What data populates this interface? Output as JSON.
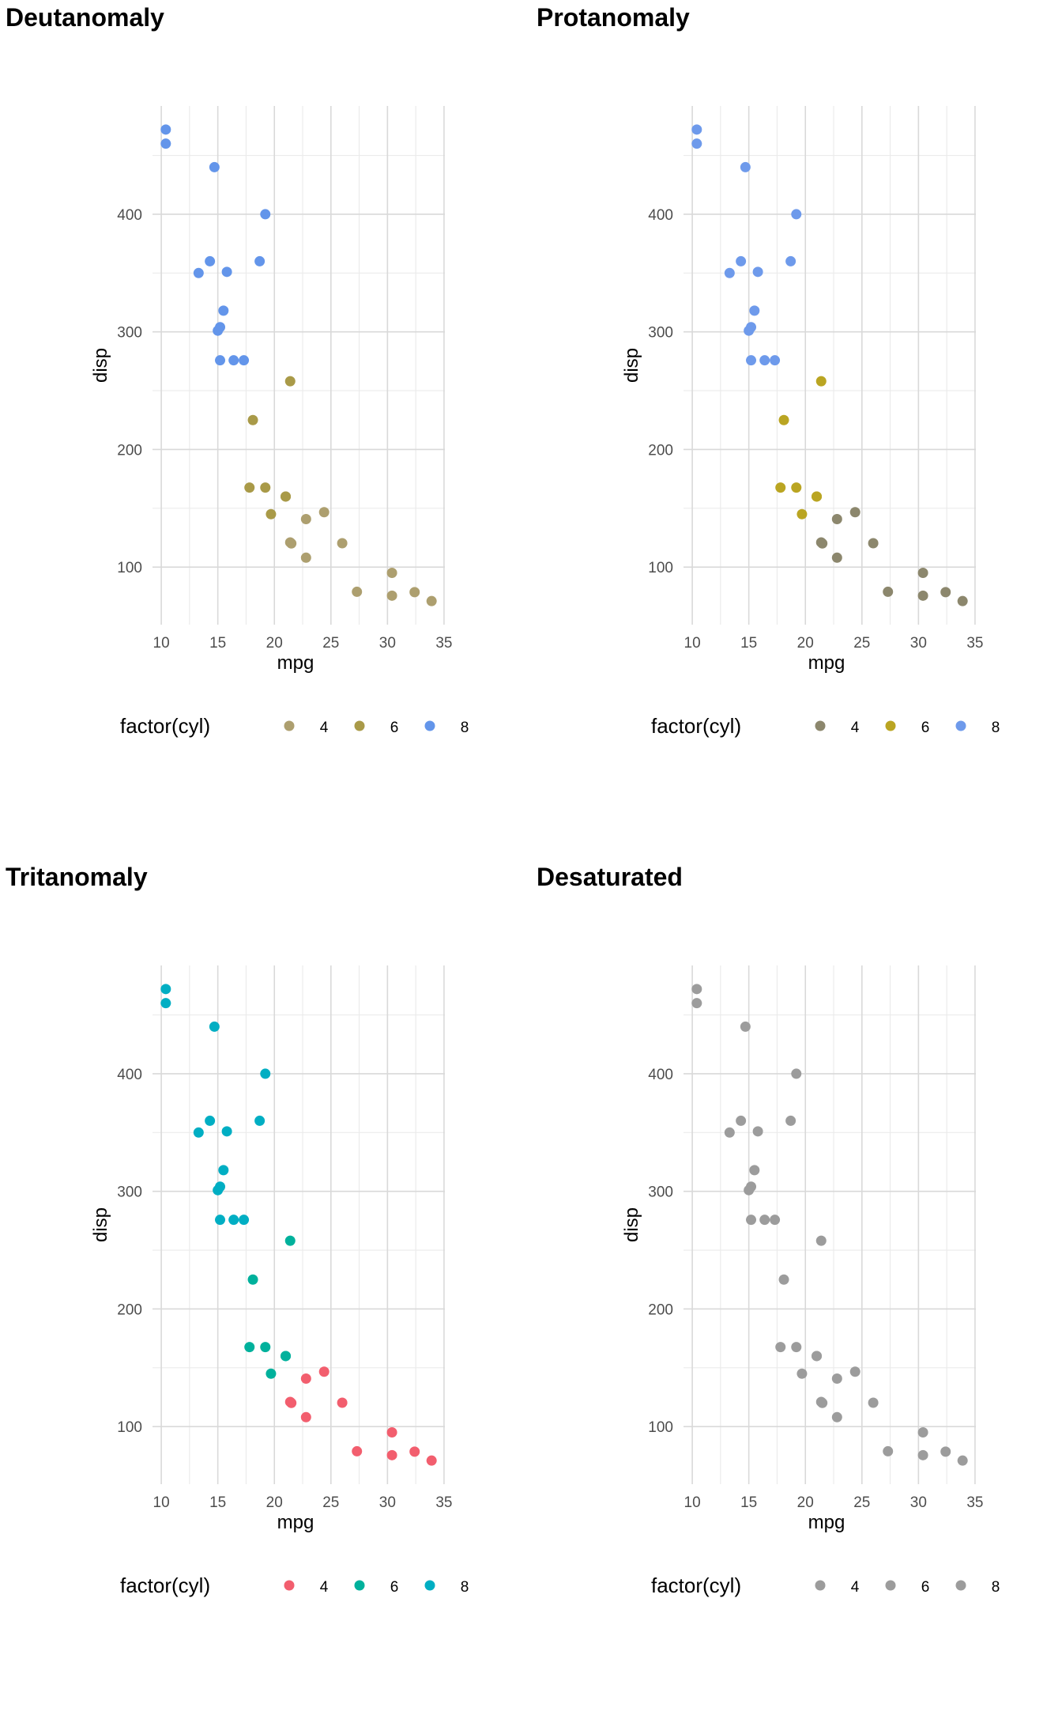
{
  "mpg_values": [
    21,
    21,
    22.8,
    21.4,
    18.7,
    18.1,
    14.3,
    24.4,
    22.8,
    19.2,
    17.8,
    16.4,
    17.3,
    15.2,
    10.4,
    10.4,
    14.7,
    32.4,
    30.4,
    33.9,
    21.5,
    15.5,
    15.2,
    13.3,
    19.2,
    27.3,
    26,
    30.4,
    15.8,
    19.7,
    15,
    21.4
  ],
  "disp_values": [
    160,
    160,
    108,
    258,
    360,
    225,
    360,
    146.7,
    140.8,
    167.6,
    167.6,
    275.8,
    275.8,
    275.8,
    472,
    460,
    440,
    78.7,
    75.7,
    71.1,
    120.1,
    318,
    304,
    350,
    400,
    79,
    120.3,
    95.1,
    351,
    145,
    301,
    121
  ],
  "cyl_values": [
    "6",
    "6",
    "4",
    "6",
    "8",
    "6",
    "8",
    "4",
    "4",
    "6",
    "6",
    "8",
    "8",
    "8",
    "8",
    "8",
    "8",
    "4",
    "4",
    "4",
    "4",
    "8",
    "8",
    "8",
    "8",
    "4",
    "4",
    "4",
    "8",
    "6",
    "8",
    "4"
  ],
  "chart_data": [
    {
      "type": "scatter",
      "title": "Deutanomaly",
      "xlabel": "mpg",
      "ylabel": "disp",
      "xlim": [
        10.4,
        33.9
      ],
      "ylim": [
        71.1,
        472
      ],
      "xticks": [
        "10",
        "15",
        "20",
        "25",
        "30",
        "35"
      ],
      "yticks": [
        "100",
        "200",
        "300",
        "400"
      ],
      "grid": true,
      "legend_position": "bottom",
      "legend_title": "factor(cyl)",
      "series": [
        {
          "name": "4",
          "color": "#ad9f6f"
        },
        {
          "name": "6",
          "color": "#a99a48"
        },
        {
          "name": "8",
          "color": "#6395ea"
        }
      ]
    },
    {
      "type": "scatter",
      "title": "Protanomaly",
      "xlabel": "mpg",
      "ylabel": "disp",
      "xlim": [
        10.4,
        33.9
      ],
      "ylim": [
        71.1,
        472
      ],
      "xticks": [
        "10",
        "15",
        "20",
        "25",
        "30",
        "35"
      ],
      "yticks": [
        "100",
        "200",
        "300",
        "400"
      ],
      "grid": true,
      "legend_position": "bottom",
      "legend_title": "factor(cyl)",
      "series": [
        {
          "name": "4",
          "color": "#8c876d"
        },
        {
          "name": "6",
          "color": "#baa522"
        },
        {
          "name": "8",
          "color": "#6e9aeb"
        }
      ]
    },
    {
      "type": "scatter",
      "title": "Tritanomaly",
      "xlabel": "mpg",
      "ylabel": "disp",
      "xlim": [
        10.4,
        33.9
      ],
      "ylim": [
        71.1,
        472
      ],
      "xticks": [
        "10",
        "15",
        "20",
        "25",
        "30",
        "35"
      ],
      "yticks": [
        "100",
        "200",
        "300",
        "400"
      ],
      "grid": true,
      "legend_position": "bottom",
      "legend_title": "factor(cyl)",
      "series": [
        {
          "name": "4",
          "color": "#f25e6e"
        },
        {
          "name": "6",
          "color": "#00b19c"
        },
        {
          "name": "8",
          "color": "#00aec3"
        }
      ]
    },
    {
      "type": "scatter",
      "title": "Desaturated",
      "xlabel": "mpg",
      "ylabel": "disp",
      "xlim": [
        10.4,
        33.9
      ],
      "ylim": [
        71.1,
        472
      ],
      "xticks": [
        "10",
        "15",
        "20",
        "25",
        "30",
        "35"
      ],
      "yticks": [
        "100",
        "200",
        "300",
        "400"
      ],
      "grid": true,
      "legend_position": "bottom",
      "legend_title": "factor(cyl)",
      "series": [
        {
          "name": "4",
          "color": "#9c9c9c"
        },
        {
          "name": "6",
          "color": "#9c9c9c"
        },
        {
          "name": "8",
          "color": "#9c9c9c"
        }
      ]
    }
  ]
}
